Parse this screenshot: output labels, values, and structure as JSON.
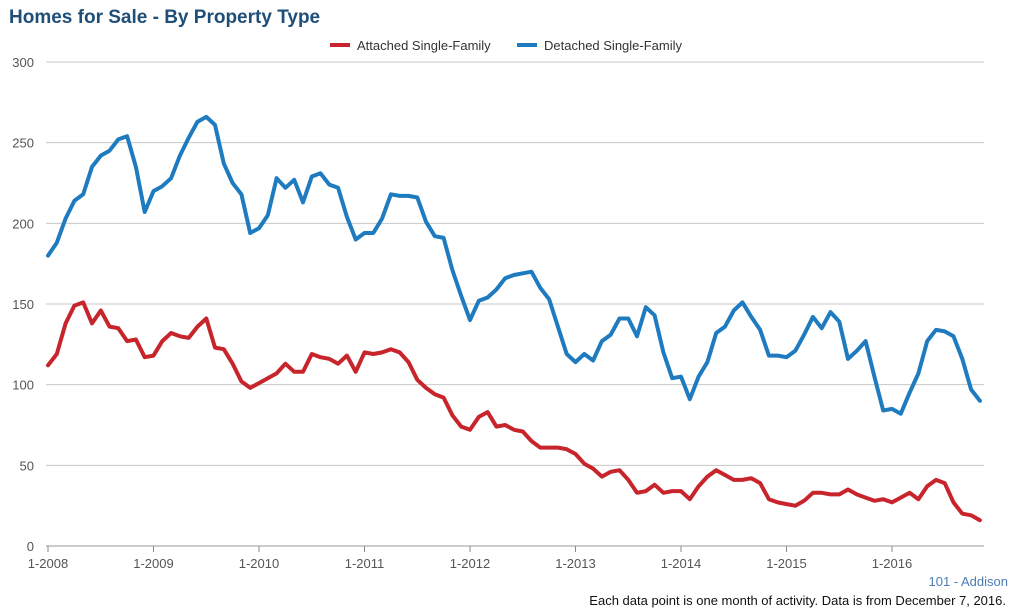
{
  "chart_data": {
    "type": "line",
    "title": "Homes for Sale - By Property Type",
    "xlabel": "",
    "ylabel": "",
    "ylim": [
      0,
      300
    ],
    "yticks": [
      0,
      50,
      100,
      150,
      200,
      250,
      300
    ],
    "xticks": [
      "1-2008",
      "1-2009",
      "1-2010",
      "1-2011",
      "1-2012",
      "1-2013",
      "1-2014",
      "1-2015",
      "1-2016"
    ],
    "x_start": "1-2008",
    "x_end": "11-2016",
    "grid": true,
    "legend_position": "top-center",
    "series": [
      {
        "name": "Attached Single-Family",
        "color": "#c8242b",
        "values": [
          112,
          119,
          138,
          149,
          151,
          138,
          146,
          136,
          135,
          127,
          128,
          117,
          118,
          127,
          132,
          130,
          129,
          136,
          141,
          123,
          122,
          113,
          102,
          98,
          101,
          104,
          107,
          113,
          108,
          108,
          119,
          117,
          116,
          113,
          118,
          108,
          120,
          119,
          120,
          122,
          120,
          114,
          103,
          98,
          94,
          92,
          81,
          74,
          72,
          80,
          83,
          74,
          75,
          72,
          71,
          65,
          61,
          61,
          61,
          60,
          57,
          51,
          48,
          43,
          46,
          47,
          41,
          33,
          34,
          38,
          33,
          34,
          34,
          29,
          37,
          43,
          47,
          44,
          41,
          41,
          42,
          39,
          29,
          27,
          26,
          25,
          28,
          33,
          33,
          32,
          32,
          35,
          32,
          30,
          28,
          29,
          27,
          30,
          33,
          29,
          37,
          41,
          39,
          27,
          20,
          19,
          16
        ]
      },
      {
        "name": "Detached Single-Family",
        "color": "#1f7bbf",
        "values": [
          180,
          188,
          203,
          214,
          218,
          235,
          242,
          245,
          252,
          254,
          235,
          207,
          220,
          223,
          228,
          242,
          253,
          263,
          266,
          261,
          237,
          225,
          218,
          194,
          197,
          205,
          228,
          222,
          227,
          213,
          229,
          231,
          224,
          222,
          204,
          190,
          194,
          194,
          203,
          218,
          217,
          217,
          216,
          201,
          192,
          191,
          171,
          155,
          140,
          152,
          154,
          159,
          166,
          168,
          169,
          170,
          160,
          153,
          136,
          119,
          114,
          119,
          115,
          127,
          131,
          141,
          141,
          130,
          148,
          143,
          120,
          104,
          105,
          91,
          105,
          114,
          132,
          136,
          146,
          151,
          142,
          134,
          118,
          118,
          117,
          121,
          131,
          142,
          135,
          145,
          139,
          116,
          121,
          127,
          105,
          84,
          85,
          82,
          95,
          107,
          127,
          134,
          133,
          130,
          116,
          97,
          90
        ]
      }
    ]
  },
  "footer": {
    "region": "101 - Addison",
    "note": "Each data point is one month of activity. Data is from December 7, 2016."
  }
}
